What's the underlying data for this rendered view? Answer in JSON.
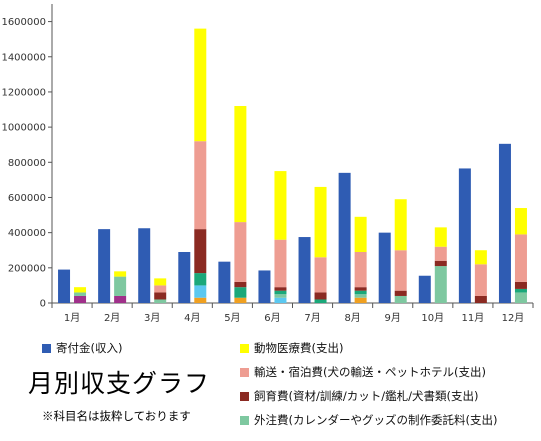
{
  "chart_data": {
    "type": "bar",
    "title": "月別収支グラフ",
    "note": "※科目名は抜粋しております",
    "categories": [
      "1月",
      "2月",
      "3月",
      "4月",
      "5月",
      "6月",
      "7月",
      "8月",
      "9月",
      "10月",
      "11月",
      "12月"
    ],
    "ylim": [
      0,
      1700000
    ],
    "yticks": [
      0,
      200000,
      400000,
      600000,
      800000,
      1000000,
      1200000,
      1400000,
      1600000
    ],
    "ytick_labels": [
      "0",
      "200000",
      "400000",
      "600000",
      "800000",
      "1000000",
      "1200000",
      "1400000",
      "1600000"
    ],
    "grid": false,
    "income_series": {
      "name": "寄付金(収入)",
      "color": "#2f5cb3",
      "values": [
        190000,
        420000,
        425000,
        290000,
        235000,
        185000,
        375000,
        740000,
        400000,
        155000,
        765000,
        905000
      ]
    },
    "expense_segments": [
      {
        "name": "",
        "color": "#f0a020",
        "values": [
          0,
          0,
          0,
          30000,
          30000,
          0,
          0,
          30000,
          0,
          0,
          0,
          0
        ]
      },
      {
        "name": "",
        "color": "#5bc8f0",
        "values": [
          0,
          0,
          0,
          70000,
          0,
          30000,
          0,
          0,
          0,
          0,
          0,
          0
        ]
      },
      {
        "name": "",
        "color": "#a0308a",
        "values": [
          40000,
          40000,
          0,
          0,
          0,
          0,
          0,
          0,
          0,
          0,
          0,
          0
        ]
      },
      {
        "name": "外注費(カレンダーやグッズの制作委託料(支出)",
        "color": "#7ec8a0",
        "values": [
          20000,
          110000,
          20000,
          0,
          0,
          20000,
          0,
          20000,
          40000,
          210000,
          0,
          60000
        ]
      },
      {
        "name": "",
        "color": "#1aa87a",
        "values": [
          0,
          0,
          0,
          70000,
          60000,
          20000,
          20000,
          20000,
          0,
          0,
          0,
          20000
        ]
      },
      {
        "name": "飼育費(資材/訓練/カット/鑑札/犬書類(支出)",
        "color": "#8b2a22",
        "values": [
          0,
          0,
          40000,
          250000,
          30000,
          20000,
          40000,
          20000,
          30000,
          30000,
          40000,
          40000
        ]
      },
      {
        "name": "輸送・宿泊費(犬の輸送・ペットホテル(支出)",
        "color": "#ee9d92",
        "values": [
          0,
          0,
          40000,
          500000,
          340000,
          270000,
          200000,
          200000,
          230000,
          80000,
          180000,
          270000
        ]
      },
      {
        "name": "動物医療費(支出)",
        "color": "#ffff00",
        "values": [
          30000,
          30000,
          40000,
          640000,
          660000,
          390000,
          400000,
          200000,
          290000,
          110000,
          80000,
          150000
        ]
      }
    ],
    "legend": [
      {
        "label": "寄付金(収入)",
        "color": "#2f5cb3"
      },
      {
        "label": "動物医療費(支出)",
        "color": "#ffff00"
      },
      {
        "label": "輸送・宿泊費(犬の輸送・ペットホテル(支出)",
        "color": "#ee9d92"
      },
      {
        "label": "飼育費(資材/訓練/カット/鑑札/犬書類(支出)",
        "color": "#8b2a22"
      },
      {
        "label": "外注費(カレンダーやグッズの制作委託料(支出)",
        "color": "#7ec8a0"
      }
    ]
  }
}
